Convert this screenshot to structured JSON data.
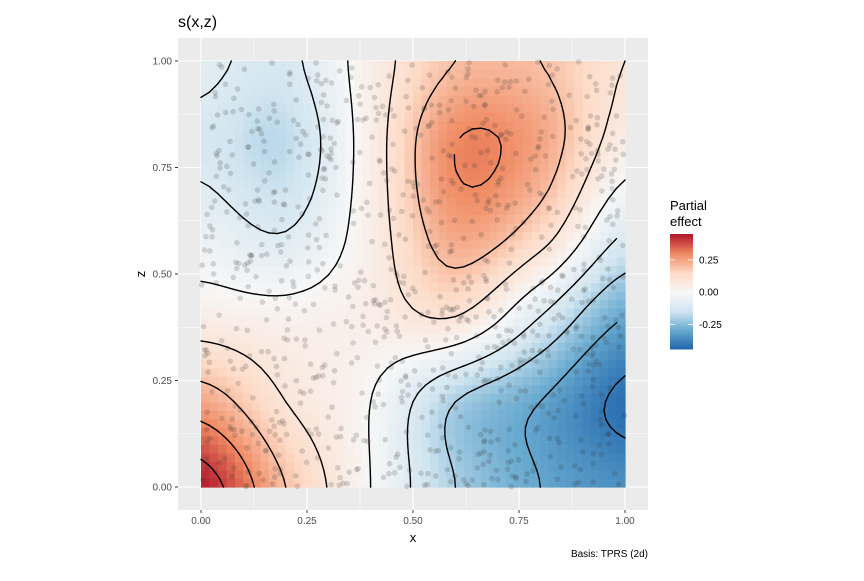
{
  "chart_data": {
    "type": "heatmap",
    "title": "s(x,z)",
    "xlabel": "x",
    "ylabel": "z",
    "caption": "Basis: TPRS (2d)",
    "xlim": [
      0,
      1
    ],
    "ylim": [
      0,
      1
    ],
    "x_ticks": [
      "0.00",
      "0.25",
      "0.50",
      "0.75",
      "1.00"
    ],
    "y_ticks": [
      "0.00",
      "0.25",
      "0.50",
      "0.75",
      "1.00"
    ],
    "grid": true,
    "legend": {
      "title_line1": "Partial",
      "title_line2": "effect",
      "ticks": [
        "0.25",
        "0.00",
        "-0.25"
      ],
      "tick_values": [
        0.25,
        0,
        -0.25
      ],
      "range": [
        -0.44,
        0.45
      ],
      "placement": "right"
    },
    "colors": [
      "#2166AC",
      "#67A9CF",
      "#D1E5F0",
      "#F7F7F7",
      "#FDDBC7",
      "#EF8A62",
      "#B2182B"
    ],
    "contours": true,
    "points_shown": true,
    "grid_x": [
      0,
      0.2,
      0.4,
      0.6,
      0.8,
      1.0
    ],
    "grid_z": [
      0,
      0.2,
      0.4,
      0.6,
      0.8,
      1.0
    ],
    "values": [
      [
        0.45,
        0.2,
        0.0,
        -0.2,
        -0.3,
        -0.35
      ],
      [
        0.25,
        0.1,
        0.0,
        -0.2,
        -0.3,
        -0.42
      ],
      [
        0.05,
        0.03,
        0.05,
        0.1,
        -0.1,
        -0.3
      ],
      [
        -0.05,
        -0.1,
        0.05,
        0.25,
        0.15,
        -0.1
      ],
      [
        -0.12,
        -0.17,
        0.05,
        0.3,
        0.25,
        0.05
      ],
      [
        -0.08,
        -0.12,
        0.05,
        0.2,
        0.2,
        0.1
      ]
    ]
  }
}
